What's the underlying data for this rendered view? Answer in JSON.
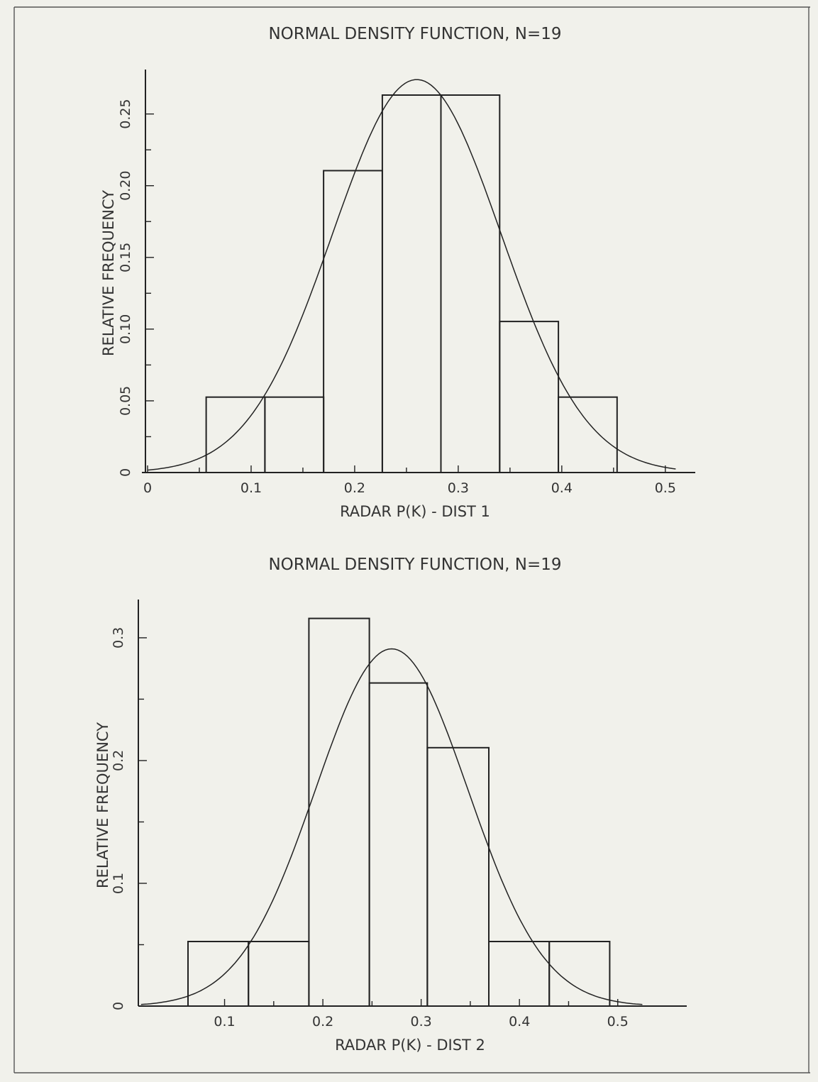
{
  "chart_data": [
    {
      "type": "bar",
      "title": "NORMAL DENSITY FUNCTION, N=19",
      "xlabel": "RADAR P(K) - DIST 1",
      "ylabel": "RELATIVE FREQUENCY",
      "xlim": [
        0,
        0.52
      ],
      "ylim": [
        0,
        0.28
      ],
      "x_ticks": [
        0,
        0.1,
        0.2,
        0.3,
        0.4,
        0.5
      ],
      "x_tick_labels": [
        "0",
        "0.1",
        "0.2",
        "0.3",
        "0.4",
        "0.5"
      ],
      "y_ticks": [
        0,
        0.05,
        0.1,
        0.15,
        0.2,
        0.25
      ],
      "y_tick_labels": [
        "0",
        "0.05",
        "0.10",
        "0.15",
        "0.20",
        "0.25"
      ],
      "bins": [
        {
          "x0": 0.0566,
          "x1": 0.1133,
          "value": 0.0526
        },
        {
          "x0": 0.1133,
          "x1": 0.17,
          "value": 0.0526
        },
        {
          "x0": 0.17,
          "x1": 0.2267,
          "value": 0.2105
        },
        {
          "x0": 0.2267,
          "x1": 0.2833,
          "value": 0.2632
        },
        {
          "x0": 0.2833,
          "x1": 0.34,
          "value": 0.2632
        },
        {
          "x0": 0.34,
          "x1": 0.3967,
          "value": 0.1053
        },
        {
          "x0": 0.3967,
          "x1": 0.4534,
          "value": 0.0526
        }
      ],
      "normal_curve": {
        "mean": 0.26,
        "peak": 0.274,
        "sd": 0.0815,
        "x_range": [
          0,
          0.51
        ]
      },
      "grid": false,
      "legend": "none"
    },
    {
      "type": "bar",
      "title": "NORMAL DENSITY FUNCTION, N=19",
      "xlabel": "RADAR P(K) - DIST 2",
      "ylabel": "RELATIVE FREQUENCY",
      "xlim": [
        0,
        0.55
      ],
      "ylim": [
        0,
        0.33
      ],
      "x_ticks": [
        0.1,
        0.2,
        0.3,
        0.4,
        0.5
      ],
      "x_tick_labels": [
        "0.1",
        "0.2",
        "0.3",
        "0.4",
        "0.5"
      ],
      "y_ticks": [
        0,
        0.1,
        0.2,
        0.3
      ],
      "y_tick_labels": [
        "0",
        "0.1",
        "0.2",
        "0.3"
      ],
      "bins": [
        {
          "x0": 0.0628,
          "x1": 0.1243,
          "value": 0.0526
        },
        {
          "x0": 0.1243,
          "x1": 0.1858,
          "value": 0.0526
        },
        {
          "x0": 0.1858,
          "x1": 0.2473,
          "value": 0.3158
        },
        {
          "x0": 0.2473,
          "x1": 0.3063,
          "value": 0.2632
        },
        {
          "x0": 0.3063,
          "x1": 0.3688,
          "value": 0.2105
        },
        {
          "x0": 0.3688,
          "x1": 0.4303,
          "value": 0.0526
        },
        {
          "x0": 0.4303,
          "x1": 0.4918,
          "value": 0.0526
        }
      ],
      "normal_curve": {
        "mean": 0.27,
        "peak": 0.291,
        "sd": 0.0775,
        "x_range": [
          0.015,
          0.525
        ]
      },
      "grid": false,
      "legend": "none"
    }
  ]
}
